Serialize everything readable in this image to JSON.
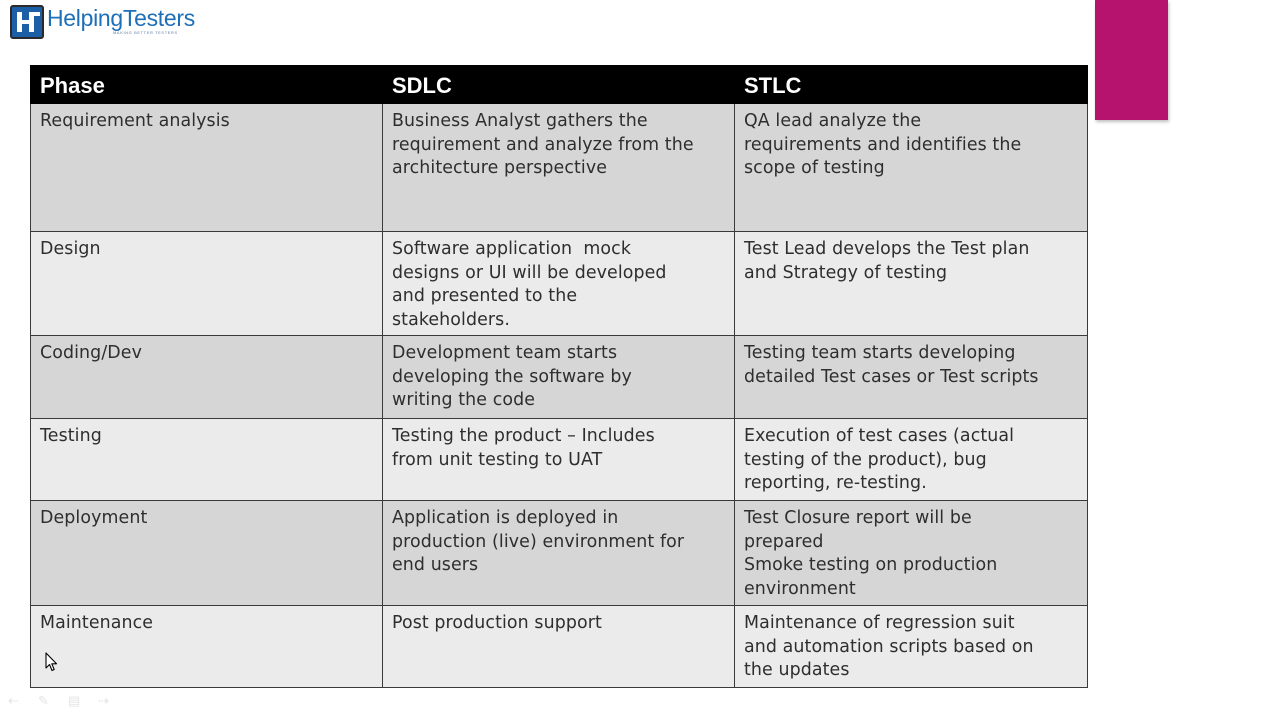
{
  "logo": {
    "part1": "Helping",
    "part2": "Testers",
    "tagline": "MAKING BETTER TESTERS"
  },
  "colors": {
    "header_bg": "#000000",
    "header_text": "#ffffff",
    "row_dark": "#d6d6d6",
    "row_light": "#ebebeb",
    "accent": "#b5136d",
    "logo_blue": "#1d6fb8"
  },
  "table": {
    "headers": [
      "Phase",
      "SDLC",
      "STLC"
    ],
    "rows": [
      {
        "phase": "Requirement analysis",
        "sdlc": [
          "Business Analyst gathers the",
          "requirement and analyze from the",
          "architecture perspective"
        ],
        "stlc": [
          "QA lead analyze the",
          "requirements and identifies the",
          "scope of testing"
        ]
      },
      {
        "phase": "Design",
        "sdlc": [
          "Software application  mock",
          "designs or UI will be developed",
          "and presented to the",
          "stakeholders."
        ],
        "stlc": [
          "Test Lead develops the Test plan",
          "and Strategy of testing"
        ]
      },
      {
        "phase": "Coding/Dev",
        "sdlc": [
          "Development team starts",
          "developing the software by",
          "writing the code"
        ],
        "stlc": [
          "Testing team starts developing",
          "detailed Test cases or Test scripts"
        ]
      },
      {
        "phase": "Testing",
        "sdlc": [
          "Testing the product – Includes",
          "from unit testing to UAT"
        ],
        "stlc": [
          "Execution of test cases (actual",
          "testing of the product), bug",
          "reporting, re-testing."
        ]
      },
      {
        "phase": "Deployment",
        "sdlc": [
          "Application is deployed in",
          "production (live) environment for",
          "end users"
        ],
        "stlc": [
          "Test Closure report will be",
          "prepared",
          "Smoke testing on production",
          "environment"
        ]
      },
      {
        "phase": "Maintenance",
        "sdlc": [
          "Post production support"
        ],
        "stlc": [
          "Maintenance of regression suit",
          "and automation scripts based on",
          "the updates"
        ]
      }
    ]
  },
  "icons": {
    "cursor": "mouse-pointer-icon",
    "toolbar": [
      "previous-slide-icon",
      "pen-icon",
      "slides-menu-icon",
      "next-slide-icon"
    ]
  }
}
